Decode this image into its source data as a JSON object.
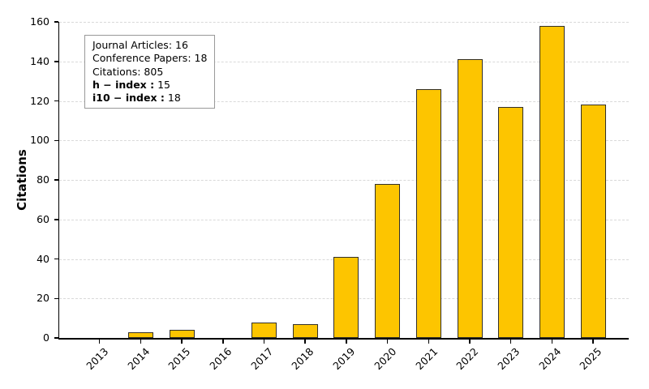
{
  "figure": {
    "background": "#ffffff"
  },
  "chart_data": {
    "type": "bar",
    "title": "",
    "xlabel": "",
    "ylabel": "Citations",
    "categories": [
      "2013",
      "2014",
      "2015",
      "2016",
      "2017",
      "2018",
      "2019",
      "2020",
      "2021",
      "2022",
      "2023",
      "2024",
      "2025"
    ],
    "values": [
      0,
      3,
      4,
      0,
      8,
      7,
      41,
      78,
      126,
      141,
      117,
      158,
      118
    ],
    "ylim": [
      0,
      160
    ],
    "yticks": [
      0,
      20,
      40,
      60,
      80,
      100,
      120,
      140,
      160
    ],
    "grid": "horizontal-dashed",
    "legend_position": "none",
    "bar_color": "#FDC500",
    "bar_edge_color": "#333028",
    "grid_color": "#d9d9d9",
    "axis_color": "#000000",
    "annotation_box": {
      "border_color": "#999999",
      "background": "#ffffff",
      "lines": [
        {
          "label": "Journal Articles:",
          "value": "16",
          "bold": false
        },
        {
          "label": "Conference Papers:",
          "value": "18",
          "bold": false
        },
        {
          "label": "Citations:",
          "value": "805",
          "bold": false
        },
        {
          "label": "h − index :",
          "value": "15",
          "bold": true
        },
        {
          "label": "i10 − index :",
          "value": "18",
          "bold": true
        }
      ]
    }
  }
}
